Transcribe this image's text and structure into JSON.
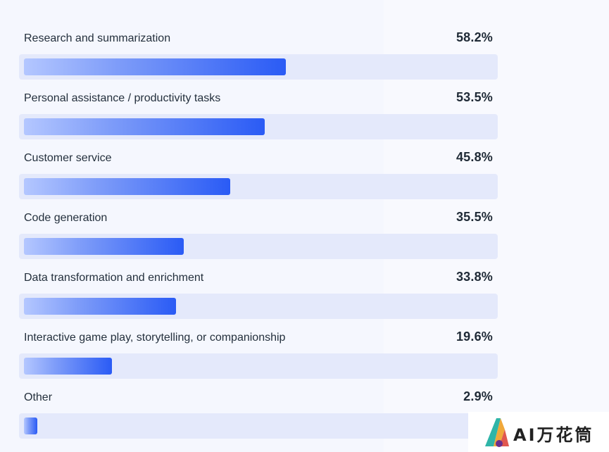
{
  "chart_data": {
    "type": "bar",
    "orientation": "horizontal",
    "categories": [
      "Research and summarization",
      "Personal assistance / productivity tasks",
      "Customer service",
      "Code generation",
      "Data transformation and enrichment",
      "Interactive game play, storytelling, or companionship",
      "Other"
    ],
    "values": [
      58.2,
      53.5,
      45.8,
      35.5,
      33.8,
      19.6,
      2.9
    ],
    "value_labels": [
      "58.2%",
      "53.5%",
      "45.8%",
      "35.5%",
      "33.8%",
      "19.6%",
      "2.9%"
    ],
    "unit": "%",
    "title": "",
    "xlabel": "",
    "ylabel": "",
    "grid": false,
    "colors": {
      "bar_start": "#b4c7ff",
      "bar_end": "#2a5bf5",
      "track": "#e4e9fb",
      "background": "#f5f7fe"
    }
  },
  "watermark": {
    "text": "AI万花筒",
    "icon": "kaleidoscope-logo-icon"
  }
}
